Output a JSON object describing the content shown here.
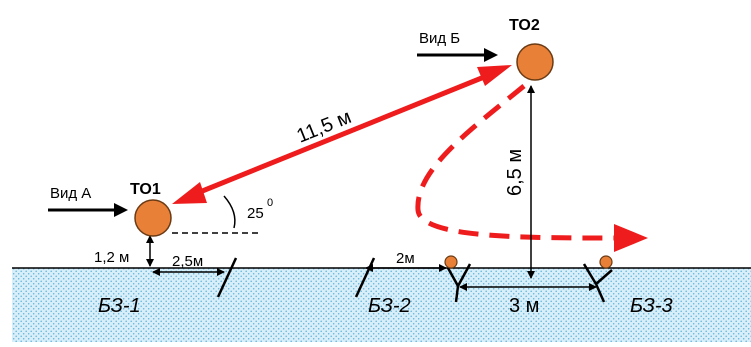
{
  "objects": {
    "to1": "ТО1",
    "to2": "ТО2"
  },
  "views": {
    "view_a": "Вид А",
    "view_b": "Вид Б"
  },
  "dimensions": {
    "distance": "11,5 м",
    "height_to2": "6,5 м",
    "height_to1": "1,2 м",
    "offset_to1": "2,5м",
    "offset_bz2": "2м",
    "gap_bz2_bz3": "3 м",
    "angle_value": "25",
    "angle_unit": "0"
  },
  "zones": {
    "bz1": "БЗ-1",
    "bz2": "БЗ-2",
    "bz3": "БЗ-3"
  },
  "colors": {
    "arrow_red": "#ee1c1c",
    "sphere_orange": "#e98038",
    "ground_fill": "#cfeaf6",
    "ground_dots": "#62b6dd"
  }
}
